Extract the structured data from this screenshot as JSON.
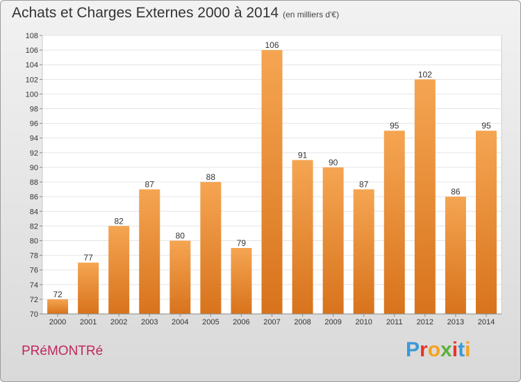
{
  "title": "Achats et Charges Externes 2000 à 2014",
  "subtitle": "(en milliers d'€)",
  "town": "PRéMONTRé",
  "logo": {
    "letters": [
      "P",
      "r",
      "o",
      "x",
      "i",
      "t",
      "i"
    ],
    "colors": [
      "#3a9ad9",
      "#e8332a",
      "#f7a21b",
      "#5db13a",
      "#e8332a",
      "#3a9ad9",
      "#f7a21b"
    ]
  },
  "colors": {
    "bar_light": "#f5a552",
    "bar_dark": "#d8731c",
    "title": "#333333",
    "town": "#c0275e"
  },
  "chart_data": {
    "type": "bar",
    "title": "Achats et Charges Externes 2000 à 2014",
    "subtitle": "(en milliers d'€)",
    "categories": [
      "2000",
      "2001",
      "2002",
      "2003",
      "2004",
      "2005",
      "2006",
      "2007",
      "2008",
      "2009",
      "2010",
      "2011",
      "2012",
      "2013",
      "2014"
    ],
    "values": [
      72,
      77,
      82,
      87,
      80,
      88,
      79,
      106,
      91,
      90,
      87,
      95,
      102,
      86,
      95
    ],
    "ylim": [
      70,
      108
    ],
    "yticks": [
      70,
      72,
      74,
      76,
      78,
      80,
      82,
      84,
      86,
      88,
      90,
      92,
      94,
      96,
      98,
      100,
      102,
      104,
      106,
      108
    ],
    "grid": true,
    "xlabel": "",
    "ylabel": ""
  }
}
